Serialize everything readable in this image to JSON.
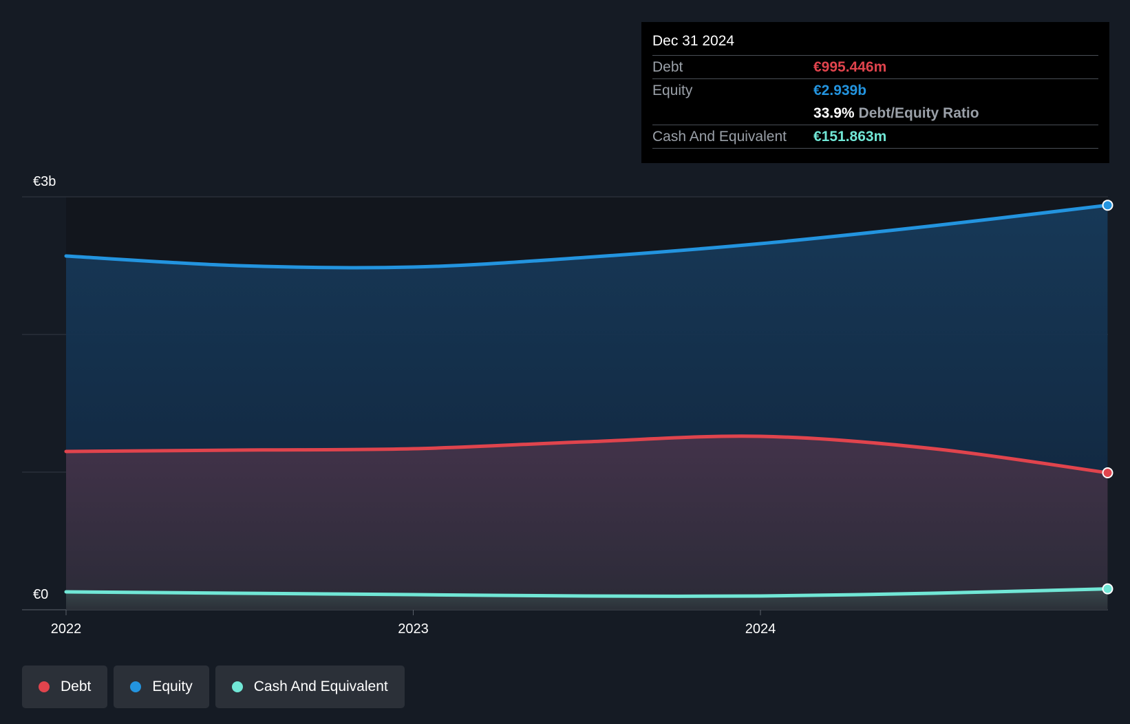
{
  "chart_data": {
    "type": "area",
    "x": [
      "2022-01-01",
      "2022-07-01",
      "2023-01-01",
      "2023-07-01",
      "2024-01-01",
      "2024-07-01",
      "2024-12-31"
    ],
    "series": [
      {
        "name": "Equity",
        "color": "#2394df",
        "values": [
          2.57,
          2.5,
          2.49,
          2.56,
          2.66,
          2.79,
          2.939
        ]
      },
      {
        "name": "Debt",
        "color": "#e0444d",
        "values": [
          1.15,
          1.16,
          1.17,
          1.22,
          1.26,
          1.17,
          0.995
        ]
      },
      {
        "name": "Cash And Equivalent",
        "color": "#71e7d6",
        "values": [
          0.13,
          0.12,
          0.11,
          0.1,
          0.1,
          0.12,
          0.152
        ]
      }
    ],
    "y_tick_labels": [
      {
        "value": 0,
        "label": "€0"
      },
      {
        "value": 3,
        "label": "€3b"
      }
    ],
    "x_tick_labels": [
      {
        "value": "2022-01-01",
        "label": "2022"
      },
      {
        "value": "2023-01-01",
        "label": "2023"
      },
      {
        "value": "2024-01-01",
        "label": "2024"
      }
    ],
    "ylim": [
      0,
      3
    ],
    "ylabel": "",
    "xlabel": "",
    "grid": true,
    "legend_position": "bottom-left"
  },
  "tooltip": {
    "date": "Dec 31 2024",
    "debt_label": "Debt",
    "debt_value": "€995.446m",
    "equity_label": "Equity",
    "equity_value": "€2.939b",
    "ratio_value": "33.9%",
    "ratio_label": "Debt/Equity Ratio",
    "cash_label": "Cash And Equivalent",
    "cash_value": "€151.863m"
  },
  "legend": {
    "debt": "Debt",
    "equity": "Equity",
    "cash": "Cash And Equivalent"
  },
  "colors": {
    "background": "#151b24",
    "debt": "#e0444d",
    "equity": "#2394df",
    "cash": "#71e7d6"
  }
}
